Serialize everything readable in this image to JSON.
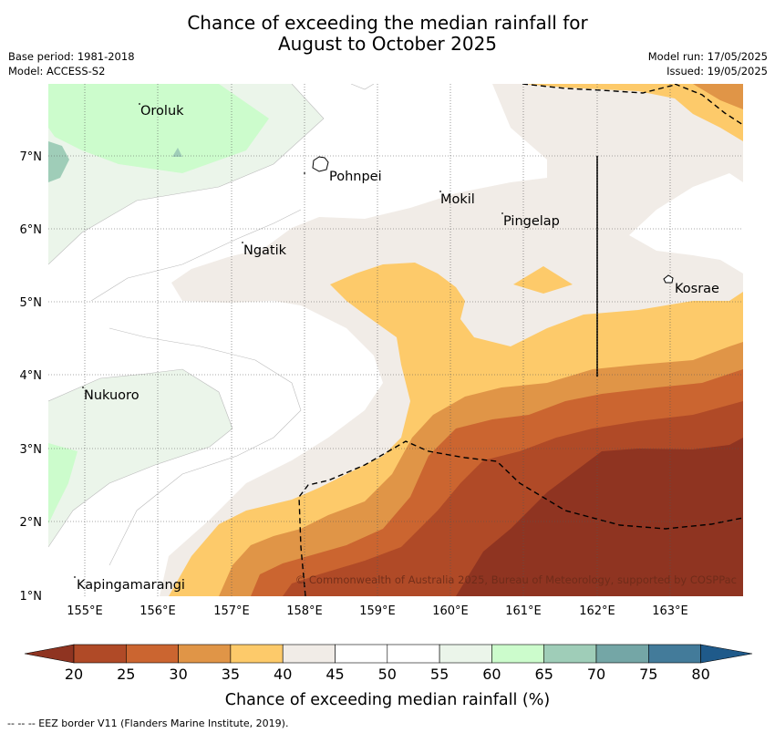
{
  "title": {
    "line1": "Chance of exceeding the median rainfall for",
    "line2": "August to October 2025"
  },
  "meta": {
    "base_period": "Base period: 1981-2018",
    "model": "Model: ACCESS-S2",
    "model_run": "Model run: 17/05/2025",
    "issued": "Issued: 19/05/2025"
  },
  "map": {
    "lat_ticks": [
      "7°N",
      "6°N",
      "5°N",
      "4°N",
      "3°N",
      "2°N",
      "1°N"
    ],
    "lon_ticks": [
      "155°E",
      "156°E",
      "157°E",
      "158°E",
      "159°E",
      "160°E",
      "161°E",
      "162°E",
      "163°E"
    ],
    "places": [
      "Oroluk",
      "Pohnpei",
      "Mokil",
      "Pingelap",
      "Ngatik",
      "Kosrae",
      "Nukuoro",
      "Kapingamarangi"
    ],
    "copyright": "© Commonwealth of Australia 2025, Bureau of Meteorology, supported by COSPPac"
  },
  "colorbar": {
    "ticks": [
      "20",
      "25",
      "30",
      "35",
      "40",
      "45",
      "50",
      "55",
      "60",
      "65",
      "70",
      "75",
      "80"
    ],
    "colors": {
      "lt20": "#8f3421",
      "20-25": "#b04a27",
      "25-30": "#cb6530",
      "30-35": "#e09547",
      "35-40": "#fdca6a",
      "40-45": "#f1ece7",
      "45-50": "#ffffff",
      "50-55": "#ffffff",
      "55-60": "#ebf5ea",
      "60-65": "#ccfccc",
      "65-70": "#9fcdb8",
      "70-75": "#74a6a6",
      "75-80": "#437b9a",
      "gt80": "#1f5a8a"
    },
    "label": "Chance of exceeding median rainfall (%)"
  },
  "footnote": "-- -- -- EEZ border V11 (Flanders Marine Institute, 2019)."
}
